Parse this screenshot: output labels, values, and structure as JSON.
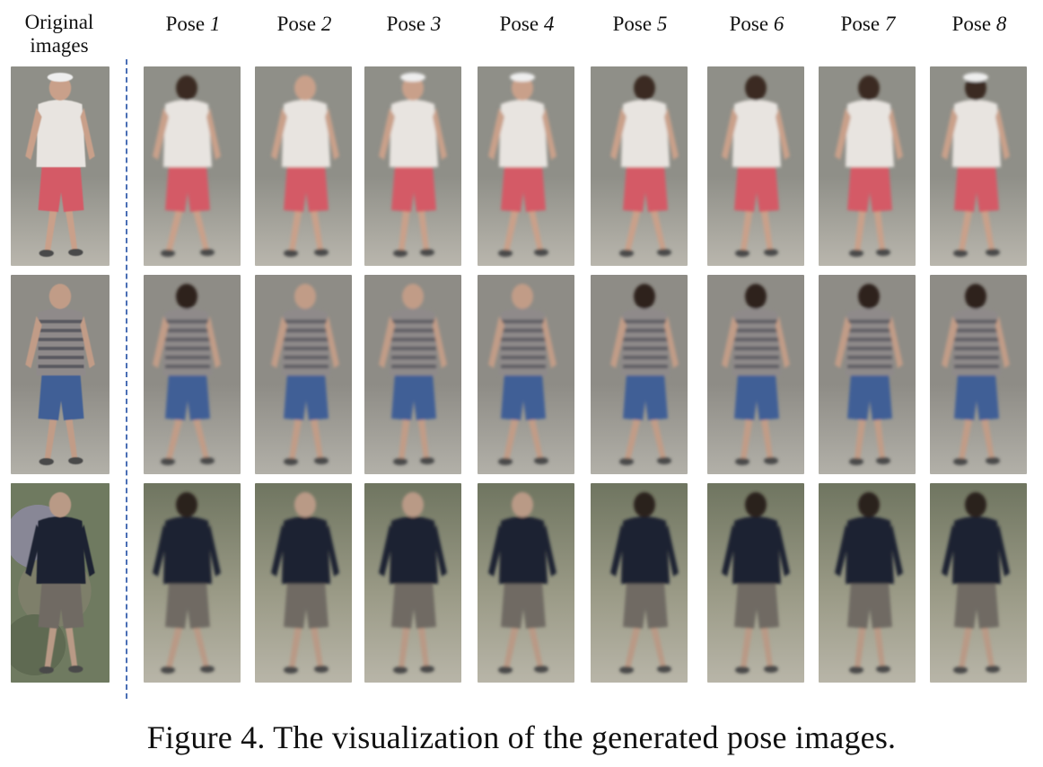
{
  "header": {
    "original_label": "Original images",
    "poses": [
      {
        "word": "Pose",
        "num": "1"
      },
      {
        "word": "Pose",
        "num": "2"
      },
      {
        "word": "Pose",
        "num": "3"
      },
      {
        "word": "Pose",
        "num": "4"
      },
      {
        "word": "Pose",
        "num": "5"
      },
      {
        "word": "Pose",
        "num": "6"
      },
      {
        "word": "Pose",
        "num": "7"
      },
      {
        "word": "Pose",
        "num": "8"
      }
    ]
  },
  "rows": [
    {
      "subject": "person-1",
      "shirt": "#e8e4e0",
      "shorts": "#d45a66",
      "skin": "#c9a08a",
      "hair": "#3a2b24",
      "background": "#8f8f88",
      "ground": "#b9b6ad"
    },
    {
      "subject": "person-2",
      "shirt": "#8f8a8a",
      "shorts": "#3f5f96",
      "skin": "#c19c87",
      "hair": "#2d231e",
      "background": "#8e8c86",
      "ground": "#b2b0a8"
    },
    {
      "subject": "person-3",
      "shirt": "#1e2330",
      "shorts": "#6f6a63",
      "skin": "#b99a86",
      "hair": "#2b231e",
      "background": "#9a9a86",
      "ground": "#b8b5a8"
    }
  ],
  "caption": "Figure 4. The visualization of the generated pose images."
}
